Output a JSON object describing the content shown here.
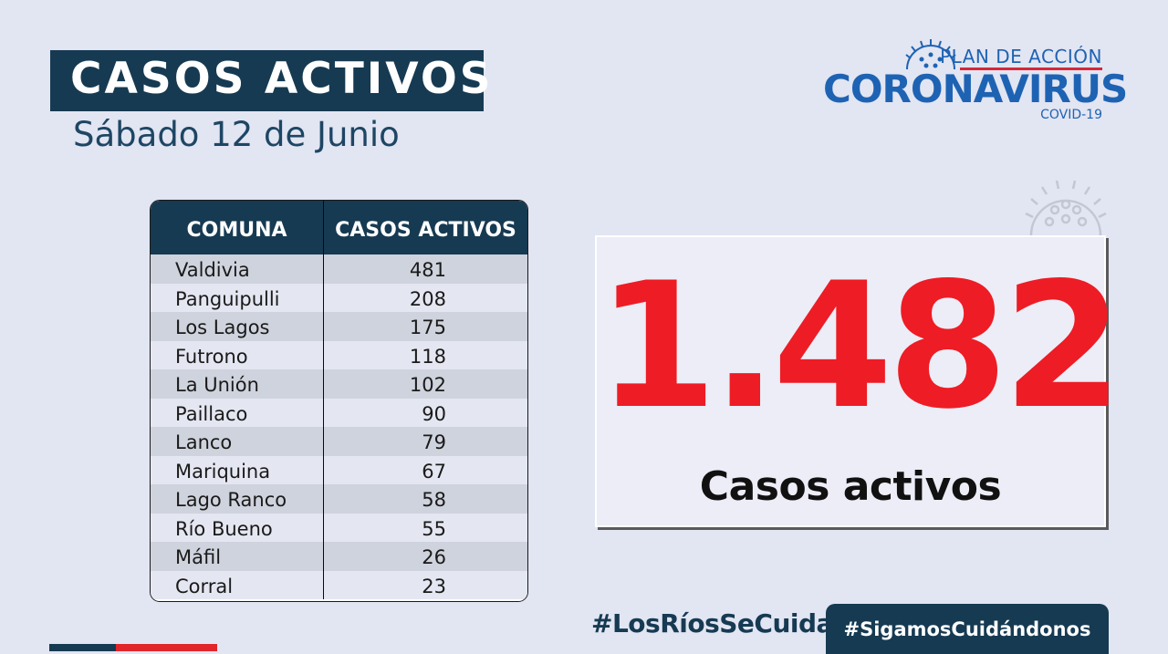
{
  "header": {
    "title": "CASOS ACTIVOS",
    "date": "Sábado 12 de Junio"
  },
  "logo": {
    "plan": "PLAN DE ACCIÓN",
    "name": "CORONAVIRUS",
    "sub": "COVID-19",
    "icon": "coronavirus-icon"
  },
  "table": {
    "headers": [
      "COMUNA",
      "CASOS ACTIVOS"
    ],
    "rows": [
      {
        "comuna": "Valdivia",
        "casos": "481"
      },
      {
        "comuna": "Panguipulli",
        "casos": "208"
      },
      {
        "comuna": "Los Lagos",
        "casos": "175"
      },
      {
        "comuna": "Futrono",
        "casos": "118"
      },
      {
        "comuna": "La Unión",
        "casos": "102"
      },
      {
        "comuna": "Paillaco",
        "casos": "90"
      },
      {
        "comuna": "Lanco",
        "casos": "79"
      },
      {
        "comuna": "Mariquina",
        "casos": "67"
      },
      {
        "comuna": "Lago Ranco",
        "casos": "58"
      },
      {
        "comuna": "Río Bueno",
        "casos": "55"
      },
      {
        "comuna": "Máfil",
        "casos": "26"
      },
      {
        "comuna": "Corral",
        "casos": "23"
      }
    ]
  },
  "total": {
    "value": "1.482",
    "label": "Casos activos"
  },
  "footer": {
    "hashtag1": "#LosRíosSeCuida",
    "hashtag2": "#SigamosCuidándonos"
  },
  "colors": {
    "navy": "#163a52",
    "red": "#ee1c25",
    "blue": "#1e63b3",
    "background": "#e2e5f2"
  }
}
